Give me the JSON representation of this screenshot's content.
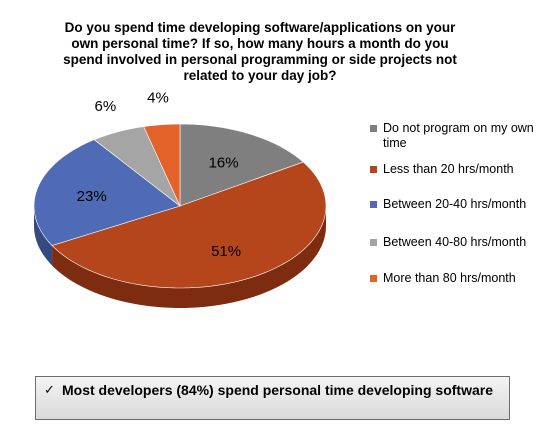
{
  "chart_data": {
    "type": "pie",
    "title": "Do you spend time developing software/applications on your own personal time? If so, how many hours a month do you spend involved in personal programming or side projects not related to your day job?",
    "categories": [
      "Do not program on my own time",
      "Less than 20 hrs/month",
      "Between 20-40 hrs/month",
      "Between 40-80 hrs/month",
      "More than 80 hrs/month"
    ],
    "values": [
      16,
      51,
      23,
      6,
      4
    ],
    "value_labels": [
      "16%",
      "51%",
      "23%",
      "6%",
      "4%"
    ],
    "colors": [
      "#7f7f7f",
      "#b5451b",
      "#4f6bb5",
      "#a5a5a5",
      "#e2622a"
    ],
    "dark_colors": [
      "#5a5a5a",
      "#7e2c10",
      "#354a80",
      "#7c7c7c",
      "#a4431b"
    ],
    "legend_position": "right",
    "style": "3d"
  },
  "callout": {
    "check": "✓",
    "text": "Most developers (84%) spend personal time developing software"
  }
}
